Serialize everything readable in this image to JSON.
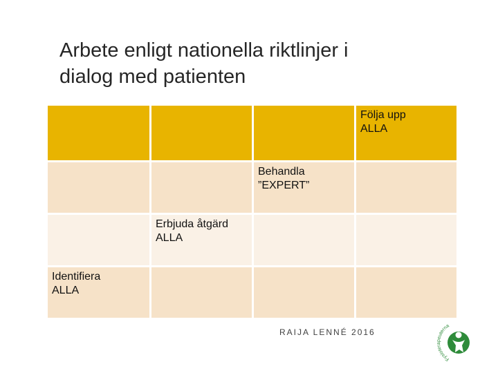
{
  "slide": {
    "title_line1": "Arbete enligt nationella riktlinjer i",
    "title_line2": "dialog med patienten"
  },
  "grid": {
    "rows": [
      [
        "",
        "",
        "",
        "Följa upp\nALLA"
      ],
      [
        "",
        "",
        "Behandla\n”EXPERT”",
        ""
      ],
      [
        "",
        "Erbjuda åtgärd\nALLA",
        "",
        ""
      ],
      [
        "Identifiera\nALLA",
        "",
        "",
        ""
      ]
    ]
  },
  "footer": {
    "author": "RAIJA LENNÉ 2016"
  },
  "colors": {
    "header_row": "#e8b400",
    "row_dark": "#f6e2c8",
    "row_light": "#faf1e6",
    "logo_green": "#2e8b3a"
  },
  "logo": {
    "icon": "green-person-logo-icon",
    "text": "Fysioterapeuterna"
  }
}
